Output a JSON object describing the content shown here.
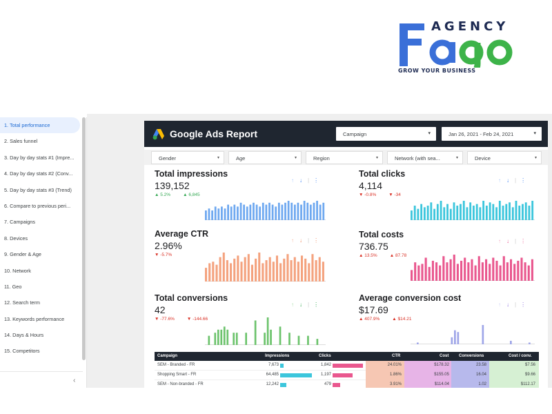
{
  "logo": {
    "brand_top": "AGENCY",
    "brand_main": "Fago",
    "tagline": "GROW YOUR BUSINESS",
    "colors": {
      "blue": "#3a6fd8",
      "green": "#3db349",
      "navy": "#1d2a52"
    }
  },
  "sidebar": {
    "items": [
      {
        "label": "1. Total performance",
        "active": true
      },
      {
        "label": "2. Sales funnel"
      },
      {
        "label": "3. Day by day stats #1 (Impre..."
      },
      {
        "label": "4. Day by day stats #2 (Conv..."
      },
      {
        "label": "5. Day by day stats #3 (Trend)"
      },
      {
        "label": "6. Compare to previous peri..."
      },
      {
        "label": "7. Campaigns"
      },
      {
        "label": "8. Devices"
      },
      {
        "label": "9. Gender & Age"
      },
      {
        "label": "10. Network"
      },
      {
        "label": "11. Geo"
      },
      {
        "label": "12. Search term"
      },
      {
        "label": "13. Keywords performance"
      },
      {
        "label": "14. Days & Hours"
      },
      {
        "label": "15. Competitors"
      }
    ],
    "collapse_icon": "chevron-left-icon",
    "collapse_glyph": "‹"
  },
  "report": {
    "title": "Google Ads Report",
    "campaign_dropdown": "Campaign",
    "date_range": "Jan 26, 2021 - Feb 24, 2021",
    "filters": [
      "Gender",
      "Age",
      "Region",
      "Network (with sea...",
      "Device"
    ],
    "cards": {
      "impressions": {
        "title": "Total impressions",
        "value": "139,152",
        "delta1": "5.2%",
        "delta2": "6,845",
        "color": "#6ea8f0",
        "bars": [
          5,
          6,
          5,
          7,
          6,
          7,
          6,
          8,
          7,
          8,
          7,
          9,
          8,
          7,
          8,
          9,
          8,
          7,
          9,
          8,
          9,
          8,
          7,
          9,
          8,
          9,
          10,
          9,
          8,
          9,
          8,
          10,
          9,
          8,
          9,
          10,
          8,
          9
        ]
      },
      "clicks": {
        "title": "Total clicks",
        "value": "4,114",
        "delta1": "-0.8%",
        "delta2": "-34",
        "color": "#3cc6dc",
        "bars": [
          6,
          9,
          7,
          10,
          8,
          9,
          11,
          7,
          10,
          12,
          8,
          10,
          7,
          11,
          9,
          10,
          12,
          8,
          11,
          9,
          10,
          8,
          12,
          9,
          11,
          10,
          8,
          12,
          9,
          10,
          11,
          8,
          12,
          9,
          10,
          11,
          9,
          12
        ]
      },
      "ctr": {
        "title": "Average CTR",
        "value": "2.96%",
        "delta1": "-5.7%",
        "color": "#f4a27e",
        "bars": [
          9,
          12,
          13,
          11,
          16,
          19,
          14,
          12,
          15,
          17,
          13,
          16,
          18,
          11,
          15,
          19,
          12,
          14,
          16,
          13,
          17,
          12,
          15,
          18,
          14,
          16,
          13,
          17,
          15,
          12,
          18,
          14,
          16,
          13
        ]
      },
      "costs": {
        "title": "Total costs",
        "value": "736.75",
        "delta1": "13.5%",
        "delta2": "87.78",
        "color": "#e9578e",
        "bars": [
          7,
          12,
          10,
          11,
          15,
          9,
          13,
          12,
          10,
          16,
          12,
          14,
          17,
          11,
          13,
          15,
          12,
          14,
          10,
          16,
          12,
          14,
          11,
          15,
          13,
          10,
          16,
          12,
          14,
          11,
          13,
          15,
          12,
          10,
          14
        ]
      },
      "conversions": {
        "title": "Total conversions",
        "value": "42",
        "delta1": "-77.6%",
        "delta2": "-144.66",
        "color": "#6cc36c",
        "bars": [
          0,
          3,
          0,
          4,
          5,
          5,
          6,
          5,
          0,
          4,
          4,
          0,
          0,
          4,
          0,
          0,
          8,
          0,
          0,
          4,
          9,
          5,
          0,
          0,
          6,
          0,
          0,
          4,
          0,
          0,
          3,
          0,
          0,
          3,
          0,
          0,
          2,
          0,
          0
        ]
      },
      "conv_cost": {
        "title": "Average conversion cost",
        "value": "$17.69",
        "delta1": "407.9%",
        "delta2": "$14.21",
        "color": "#9fa6e8",
        "bars": [
          0,
          0,
          1,
          0,
          0,
          0,
          0,
          0,
          0,
          0,
          0,
          0,
          0,
          4,
          8,
          7,
          0,
          0,
          0,
          0,
          0,
          0,
          0,
          11,
          0,
          0,
          0,
          0,
          0,
          0,
          0,
          0,
          2,
          0,
          0,
          0,
          0,
          0,
          1,
          0
        ]
      }
    },
    "table": {
      "headers": [
        "Campaign",
        "Impressions",
        "Clicks",
        "CTR",
        "Cost",
        "Conversions",
        "Cost / conv."
      ],
      "rows": [
        {
          "campaign": "SEM - Branded - FR",
          "impressions": "7,673",
          "imp_frac": 0.1,
          "clicks": "1,842",
          "clk_frac": 1.0,
          "ctr": "24.01%",
          "cost": "$178.32",
          "conv": "23.58",
          "cpc": "$7.56"
        },
        {
          "campaign": "Shopping Smart - FR",
          "impressions": "64,485",
          "imp_frac": 1.0,
          "clicks": "1,197",
          "clk_frac": 0.65,
          "ctr": "1.86%",
          "cost": "$155.05",
          "conv": "16.04",
          "cpc": "$9.66"
        },
        {
          "campaign": "SEM - Non-branded - FR",
          "impressions": "12,242",
          "imp_frac": 0.19,
          "clicks": "479",
          "clk_frac": 0.26,
          "ctr": "3.91%",
          "cost": "$114.04",
          "conv": "1.02",
          "cpc": "$112.17"
        }
      ]
    }
  }
}
